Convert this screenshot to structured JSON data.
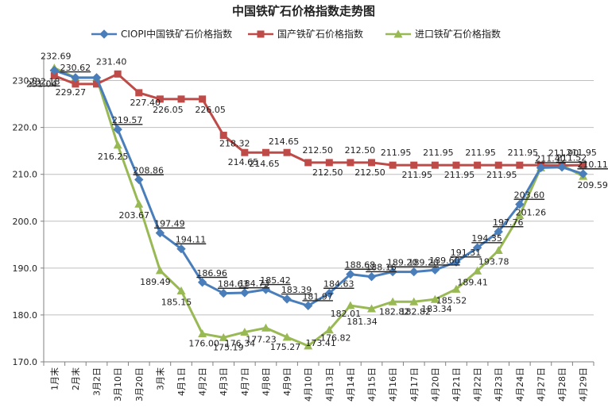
{
  "colors": {
    "ciopi": "#4A7EBB",
    "domestic": "#BE4B48",
    "imported": "#98B954",
    "grid": "#bfbfbf",
    "axis": "#808080"
  },
  "chart_data": {
    "type": "line",
    "title": "中国铁矿石价格指数走势图",
    "legend_position": "top",
    "grid": true,
    "ylim": [
      170,
      235
    ],
    "yticks": [
      "170.0",
      "180.0",
      "190.0",
      "200.0",
      "210.0",
      "220.0",
      "230.0"
    ],
    "categories": [
      "1月末",
      "2月末",
      "3月2日",
      "3月10日",
      "3月20日",
      "3月末",
      "4月1日",
      "4月2日",
      "4月3日",
      "4月7日",
      "4月8日",
      "4月9日",
      "4月10日",
      "4月13日",
      "4月14日",
      "4月15日",
      "4月16日",
      "4月17日",
      "4月20日",
      "4月21日",
      "4月22日",
      "4月23日",
      "4月24日",
      "4月27日",
      "4月28日",
      "4月29日"
    ],
    "series": [
      {
        "name": "CIOPI中国铁矿石价格指数",
        "color": "#4A7EBB",
        "marker": "diamond",
        "values": [
          232.18,
          230.62,
          230.62,
          219.57,
          208.86,
          197.49,
          194.11,
          186.96,
          184.63,
          184.73,
          185.42,
          183.39,
          181.97,
          184.63,
          188.68,
          188.16,
          189.2,
          189.2,
          189.6,
          191.31,
          194.35,
          197.76,
          203.6,
          211.4,
          211.52,
          210.11
        ],
        "labels": [
          "232.18",
          "230.62",
          "",
          "219.57",
          "208.86",
          "197.49",
          "194.11",
          "186.96",
          "184.63",
          "184.73",
          "185.42",
          "183.39",
          "181.97",
          "184.63",
          "188.68",
          "188.16",
          "189.20",
          "189.20",
          "189.60",
          "191.31",
          "194.35",
          "197.76",
          "203.60",
          "211.40",
          "211.52",
          "210.11"
        ]
      },
      {
        "name": "国产铁矿石价格指数",
        "color": "#BE4B48",
        "marker": "square",
        "values": [
          231.04,
          229.27,
          229.27,
          231.4,
          227.4,
          226.05,
          226.05,
          226.05,
          218.32,
          214.65,
          214.65,
          214.65,
          212.5,
          212.5,
          212.5,
          212.5,
          211.95,
          211.95,
          211.95,
          211.95,
          211.95,
          211.95,
          211.95,
          211.95,
          211.9,
          211.95
        ],
        "labels": [
          "231.04",
          "229.27",
          "",
          "231.40",
          "227.40",
          "226.05",
          "",
          "226.05",
          "218.32",
          "214.65",
          "214.65",
          "214.65",
          "212.50",
          "212.50",
          "212.50",
          "212.50",
          "211.95",
          "211.95",
          "211.95",
          "211.95",
          "211.95",
          "211.95",
          "211.95",
          "",
          "211.90",
          "211.95"
        ]
      },
      {
        "name": "进口铁矿石价格指数",
        "color": "#98B954",
        "marker": "triangle",
        "values": [
          232.69,
          230.62,
          230.62,
          216.25,
          203.67,
          189.49,
          185.15,
          176.0,
          175.19,
          176.34,
          177.23,
          175.27,
          173.41,
          176.82,
          182.01,
          181.34,
          182.82,
          182.82,
          183.34,
          185.52,
          189.41,
          193.78,
          201.26,
          211.4,
          211.95,
          209.59
        ],
        "labels": [
          "232.69",
          "",
          "",
          "216.25",
          "203.67",
          "189.49",
          "185.15",
          "176.00",
          "175.19",
          "176.34",
          "177.23",
          "175.27",
          "173.41",
          "176.82",
          "182.01",
          "181.34",
          "182.82",
          "182.82",
          "183.34",
          "185.52",
          "189.41",
          "193.78",
          "201.26",
          "",
          "",
          "209.59"
        ]
      }
    ]
  }
}
